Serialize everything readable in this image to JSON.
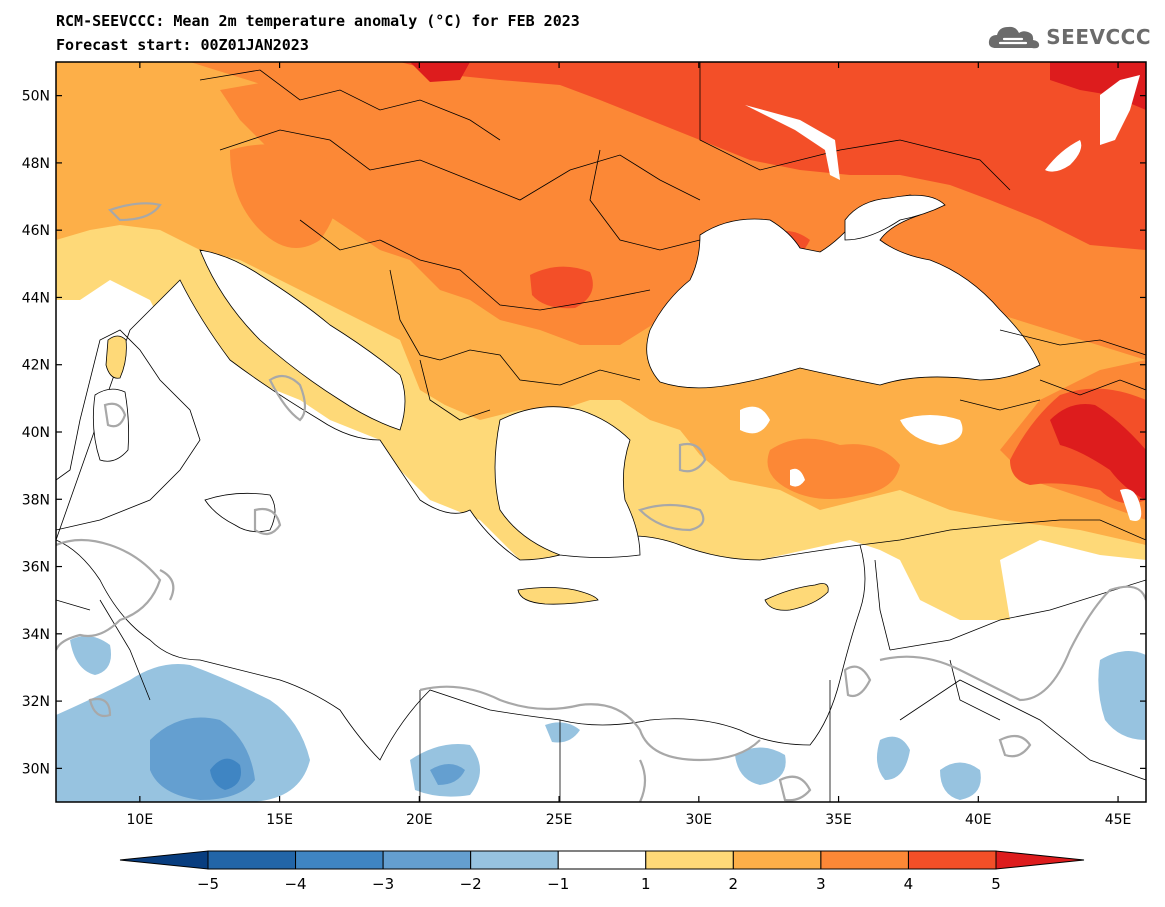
{
  "header": {
    "title": "RCM-SEEVCCC: Mean 2m temperature anomaly (°C) for FEB 2023",
    "subtitle": "Forecast start: 00Z01JAN2023"
  },
  "logo": {
    "text": "SEEVCCC",
    "icon": "cloud-icon",
    "color": "#6b6b6b"
  },
  "map": {
    "lon_range": [
      7,
      46
    ],
    "lat_range": [
      29,
      51
    ],
    "lon_ticks": [
      10,
      15,
      20,
      25,
      30,
      35,
      40,
      45
    ],
    "lon_tick_labels": [
      "10E",
      "15E",
      "20E",
      "25E",
      "30E",
      "35E",
      "40E",
      "45E"
    ],
    "lat_ticks": [
      30,
      32,
      34,
      36,
      38,
      40,
      42,
      44,
      46,
      48,
      50
    ],
    "lat_tick_labels": [
      "30N",
      "32N",
      "34N",
      "36N",
      "38N",
      "40N",
      "42N",
      "44N",
      "46N",
      "48N",
      "50N"
    ]
  },
  "colorbar": {
    "bounds": [
      -5,
      -4,
      -3,
      -2,
      -1,
      1,
      2,
      3,
      4,
      5
    ],
    "labels": [
      "−5",
      "−4",
      "−3",
      "−2",
      "−1",
      "1",
      "2",
      "3",
      "4",
      "5"
    ],
    "colors": [
      "#2265a8",
      "#3f85c3",
      "#649fd0",
      "#97c3e0",
      "#ffffff",
      "#fed978",
      "#fdaf48",
      "#fc8836",
      "#f34f28"
    ],
    "extend_low_color": "#083d7f",
    "extend_high_color": "#dd1c1d"
  }
}
